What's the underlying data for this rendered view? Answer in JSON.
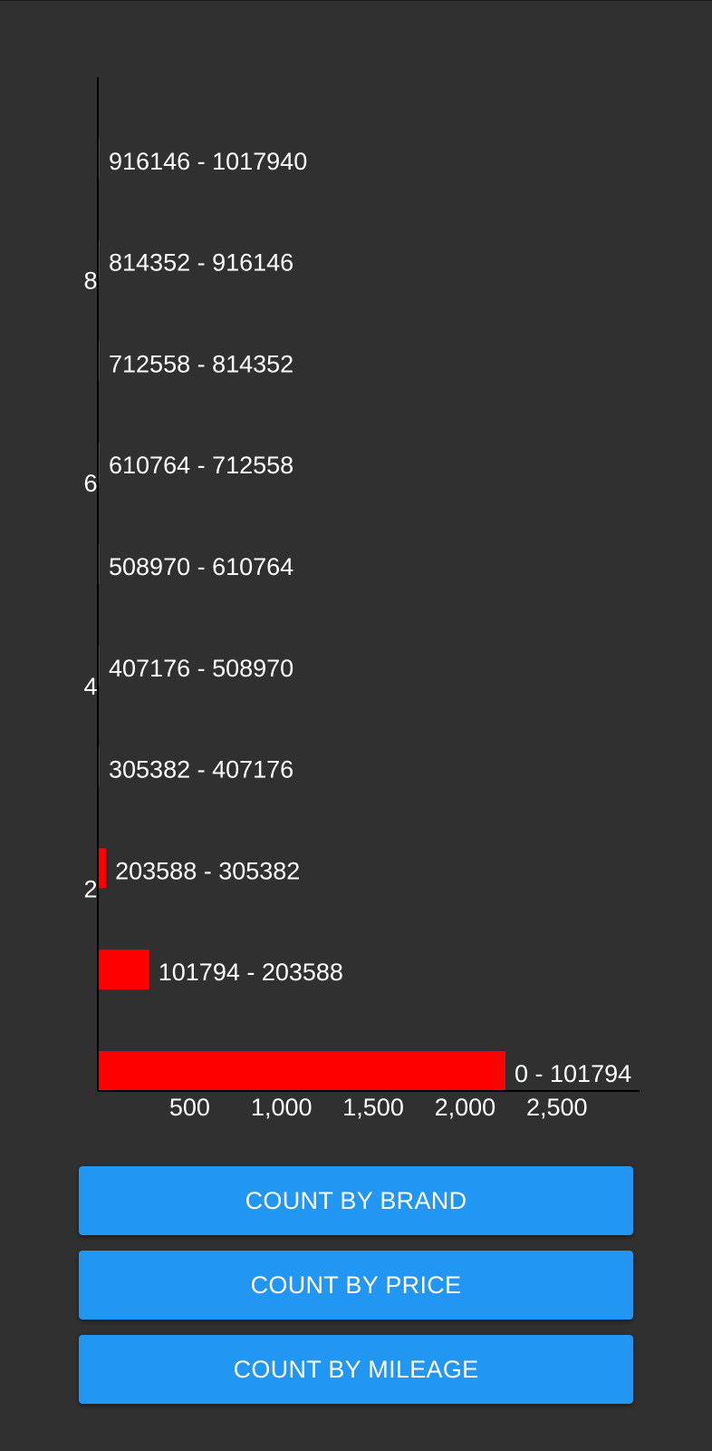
{
  "chart_data": {
    "type": "bar",
    "orientation": "horizontal",
    "categories": [
      "0 - 101794",
      "101794 - 203588",
      "203588 - 305382",
      "305382 - 407176",
      "407176 - 508970",
      "508970 - 610764",
      "610764 - 712558",
      "712558 - 814352",
      "814352 - 916146",
      "916146 - 1017940"
    ],
    "values": [
      2220,
      280,
      45,
      5,
      5,
      3,
      4,
      3,
      5,
      5
    ],
    "value_axis": {
      "ticks": [
        500,
        1000,
        1500,
        2000,
        2500
      ],
      "tick_labels": [
        "500",
        "1,000",
        "1,500",
        "2,000",
        "2,500"
      ],
      "range": [
        0,
        2950
      ]
    },
    "index_axis": {
      "tick_labels": [
        "2",
        "4",
        "6",
        "8"
      ]
    },
    "bar_color": "#ff0000",
    "axis_color": "#000000",
    "label_color": "#ffffff",
    "grid": false,
    "legend": "none"
  },
  "buttons": {
    "brand": "COUNT BY BRAND",
    "price": "COUNT BY PRICE",
    "mileage": "COUNT BY MILEAGE"
  },
  "colors": {
    "background": "#303030",
    "button": "#2196f3",
    "button_text": "#ffffff"
  }
}
